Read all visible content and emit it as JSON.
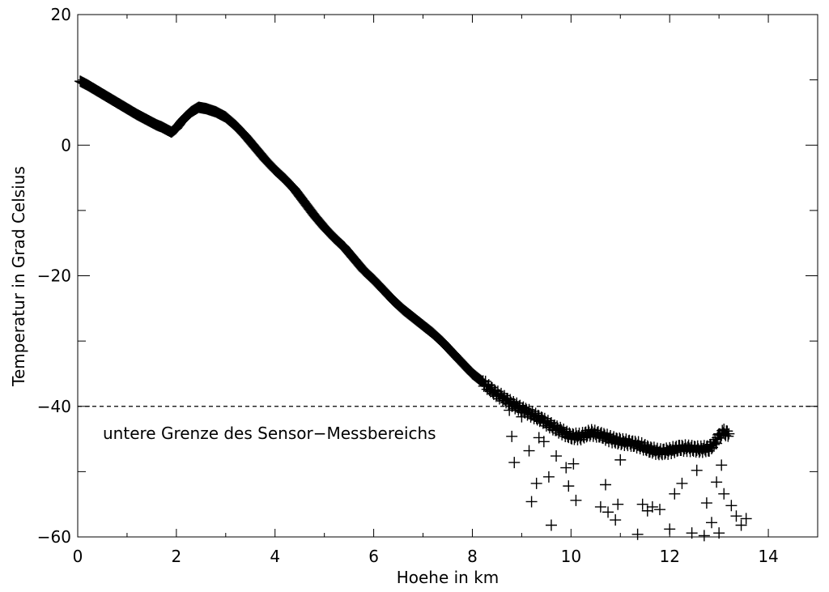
{
  "chart_data": {
    "type": "scatter",
    "title": "",
    "xlabel": "Hoehe in km",
    "ylabel": "Temperatur in Grad Celsius",
    "xlim": [
      0,
      15
    ],
    "ylim": [
      -60,
      20
    ],
    "xticks": [
      0,
      2,
      4,
      6,
      8,
      10,
      12,
      14
    ],
    "yticks": [
      -60,
      -40,
      -20,
      0,
      20
    ],
    "grid": false,
    "marker": "+",
    "reference_line": {
      "y": -40,
      "style": "dashed"
    },
    "annotation": "untere Grenze des Sensor−Messbereichs",
    "profile": [
      [
        0.05,
        9.8
      ],
      [
        0.2,
        9.2
      ],
      [
        0.4,
        8.3
      ],
      [
        0.6,
        7.4
      ],
      [
        0.8,
        6.5
      ],
      [
        1.0,
        5.6
      ],
      [
        1.2,
        4.7
      ],
      [
        1.4,
        3.9
      ],
      [
        1.6,
        3.1
      ],
      [
        1.7,
        2.8
      ],
      [
        1.8,
        2.4
      ],
      [
        1.9,
        2.0
      ],
      [
        2.0,
        2.6
      ],
      [
        2.1,
        3.6
      ],
      [
        2.2,
        4.4
      ],
      [
        2.3,
        5.1
      ],
      [
        2.45,
        5.8
      ],
      [
        2.6,
        5.6
      ],
      [
        2.8,
        5.1
      ],
      [
        3.0,
        4.3
      ],
      [
        3.2,
        3.0
      ],
      [
        3.4,
        1.4
      ],
      [
        3.6,
        -0.4
      ],
      [
        3.8,
        -2.2
      ],
      [
        4.0,
        -3.8
      ],
      [
        4.2,
        -5.2
      ],
      [
        4.4,
        -6.8
      ],
      [
        4.6,
        -8.8
      ],
      [
        4.8,
        -10.8
      ],
      [
        5.0,
        -12.6
      ],
      [
        5.2,
        -14.2
      ],
      [
        5.4,
        -15.6
      ],
      [
        5.6,
        -17.4
      ],
      [
        5.8,
        -19.2
      ],
      [
        6.0,
        -20.6
      ],
      [
        6.2,
        -22.2
      ],
      [
        6.4,
        -23.8
      ],
      [
        6.6,
        -25.2
      ],
      [
        6.8,
        -26.4
      ],
      [
        7.0,
        -27.6
      ],
      [
        7.2,
        -28.8
      ],
      [
        7.4,
        -30.2
      ],
      [
        7.6,
        -31.8
      ],
      [
        7.8,
        -33.4
      ],
      [
        8.0,
        -35.0
      ],
      [
        8.2,
        -36.2
      ],
      [
        8.4,
        -37.6
      ],
      [
        8.6,
        -38.6
      ],
      [
        8.8,
        -39.6
      ],
      [
        9.0,
        -40.4
      ],
      [
        9.2,
        -41.2
      ],
      [
        9.4,
        -42.0
      ],
      [
        9.6,
        -43.0
      ],
      [
        9.8,
        -43.8
      ],
      [
        10.0,
        -44.6
      ],
      [
        10.2,
        -44.6
      ],
      [
        10.4,
        -44.0
      ],
      [
        10.6,
        -44.4
      ],
      [
        10.8,
        -45.0
      ],
      [
        11.0,
        -45.4
      ],
      [
        11.2,
        -45.6
      ],
      [
        11.4,
        -46.0
      ],
      [
        11.6,
        -46.6
      ],
      [
        11.8,
        -47.0
      ],
      [
        12.0,
        -46.8
      ],
      [
        12.2,
        -46.4
      ],
      [
        12.4,
        -46.4
      ],
      [
        12.6,
        -46.6
      ],
      [
        12.8,
        -46.4
      ],
      [
        12.9,
        -45.8
      ],
      [
        13.0,
        -44.6
      ],
      [
        13.1,
        -44.0
      ],
      [
        13.2,
        -44.2
      ]
    ],
    "outliers": [
      [
        8.75,
        -40.6
      ],
      [
        8.8,
        -44.6
      ],
      [
        8.85,
        -48.6
      ],
      [
        9.0,
        -41.6
      ],
      [
        9.15,
        -46.8
      ],
      [
        9.2,
        -54.6
      ],
      [
        9.3,
        -51.8
      ],
      [
        9.35,
        -44.8
      ],
      [
        9.45,
        -45.4
      ],
      [
        9.55,
        -50.8
      ],
      [
        9.6,
        -58.2
      ],
      [
        9.7,
        -47.6
      ],
      [
        9.9,
        -49.4
      ],
      [
        9.95,
        -52.2
      ],
      [
        10.05,
        -48.8
      ],
      [
        10.1,
        -54.4
      ],
      [
        10.6,
        -55.4
      ],
      [
        10.7,
        -52.0
      ],
      [
        10.75,
        -56.2
      ],
      [
        10.9,
        -57.4
      ],
      [
        10.95,
        -55.0
      ],
      [
        11.0,
        -48.2
      ],
      [
        11.35,
        -59.6
      ],
      [
        11.45,
        -55.0
      ],
      [
        11.55,
        -56.0
      ],
      [
        11.65,
        -55.4
      ],
      [
        11.8,
        -55.8
      ],
      [
        12.0,
        -58.8
      ],
      [
        12.1,
        -53.4
      ],
      [
        12.25,
        -51.8
      ],
      [
        12.45,
        -59.4
      ],
      [
        12.55,
        -49.8
      ],
      [
        12.75,
        -54.8
      ],
      [
        12.85,
        -57.8
      ],
      [
        12.95,
        -51.6
      ],
      [
        13.05,
        -49.0
      ],
      [
        13.1,
        -53.4
      ],
      [
        13.25,
        -55.2
      ],
      [
        13.35,
        -56.8
      ],
      [
        13.45,
        -58.2
      ],
      [
        13.55,
        -57.2
      ],
      [
        12.7,
        -59.8
      ],
      [
        13.0,
        -59.4
      ]
    ]
  }
}
